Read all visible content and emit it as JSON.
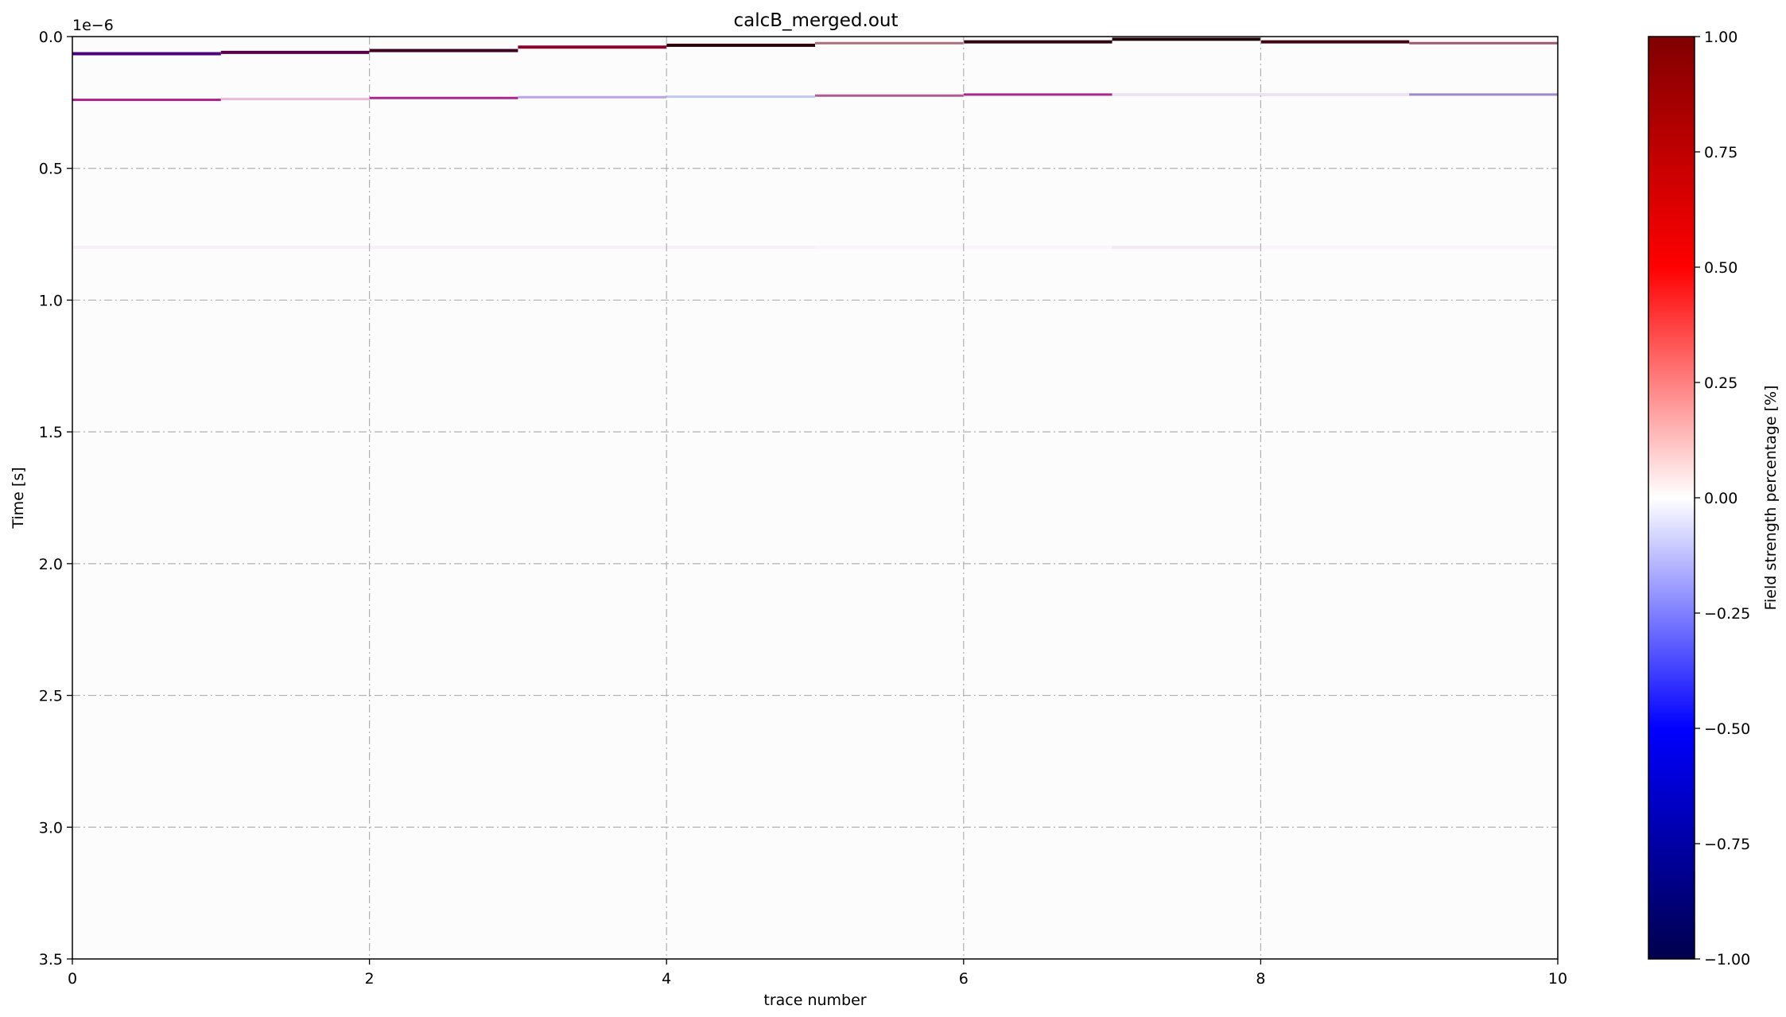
{
  "chart_data": {
    "type": "heatmap",
    "title": "calcB_merged.out",
    "xlabel": "trace number",
    "ylabel": "Time [s]",
    "y_offset_label": "1e−6",
    "y_scale_factor": 1e-06,
    "xlim": [
      0,
      10
    ],
    "ylim": [
      3.5,
      0.0
    ],
    "y_inverted": true,
    "x_ticks": [
      0,
      2,
      4,
      6,
      8,
      10
    ],
    "x_tick_labels": [
      "0",
      "2",
      "4",
      "6",
      "8",
      "10"
    ],
    "y_ticks": [
      0.0,
      0.5,
      1.0,
      1.5,
      2.0,
      2.5,
      3.0,
      3.5
    ],
    "y_tick_labels": [
      "0.0",
      "0.5",
      "1.0",
      "1.5",
      "2.0",
      "2.5",
      "3.0",
      "3.5"
    ],
    "grid": true,
    "colormap": "seismic",
    "colorbar": {
      "label": "Field strength percentage [%]",
      "range": [
        -1.0,
        1.0
      ],
      "ticks": [
        1.0,
        0.75,
        0.5,
        0.25,
        0.0,
        -0.25,
        -0.5,
        -0.75,
        -1.0
      ],
      "tick_labels": [
        "1.00",
        "0.75",
        "0.50",
        "0.25",
        "0.00",
        "−0.25",
        "−0.50",
        "−0.75",
        "−1.00"
      ]
    },
    "background_value": 0.0,
    "traces": [
      {
        "x": [
          0,
          1
        ],
        "reflections": [
          {
            "t": 0.065,
            "value": 0.98,
            "hue": "#4b0080"
          },
          {
            "t": 0.24,
            "value": 0.55,
            "hue": "#a0107e"
          },
          {
            "t": 0.8,
            "value": 0.06,
            "hue": "#f0d8f0"
          }
        ]
      },
      {
        "x": [
          1,
          2
        ],
        "reflections": [
          {
            "t": 0.06,
            "value": 0.96,
            "hue": "#5a0048"
          },
          {
            "t": 0.237,
            "value": 0.35,
            "hue": "#e4a0cc"
          },
          {
            "t": 0.8,
            "value": 0.06,
            "hue": "#f0d8f0"
          }
        ]
      },
      {
        "x": [
          2,
          3
        ],
        "reflections": [
          {
            "t": 0.053,
            "value": 0.97,
            "hue": "#3c0022"
          },
          {
            "t": 0.233,
            "value": 0.55,
            "hue": "#a0107e"
          },
          {
            "t": 0.8,
            "value": 0.06,
            "hue": "#f0d8f0"
          }
        ]
      },
      {
        "x": [
          3,
          4
        ],
        "reflections": [
          {
            "t": 0.04,
            "value": 0.95,
            "hue": "#8c0028"
          },
          {
            "t": 0.23,
            "value": 0.45,
            "hue": "#a890d8"
          },
          {
            "t": 0.8,
            "value": 0.06,
            "hue": "#f0d8f0"
          }
        ]
      },
      {
        "x": [
          4,
          5
        ],
        "reflections": [
          {
            "t": 0.033,
            "value": 1.0,
            "hue": "#300008"
          },
          {
            "t": 0.228,
            "value": 0.35,
            "hue": "#a8b4e8"
          },
          {
            "t": 0.8,
            "value": 0.06,
            "hue": "#f0d8f0"
          }
        ]
      },
      {
        "x": [
          5,
          6
        ],
        "reflections": [
          {
            "t": 0.025,
            "value": 0.55,
            "hue": "#a06070"
          },
          {
            "t": 0.224,
            "value": 0.5,
            "hue": "#a0407e"
          },
          {
            "t": 0.8,
            "value": 0.04,
            "hue": "#f4e4f4"
          }
        ]
      },
      {
        "x": [
          6,
          7
        ],
        "reflections": [
          {
            "t": 0.02,
            "value": 0.99,
            "hue": "#300010"
          },
          {
            "t": 0.22,
            "value": 0.55,
            "hue": "#a0107e"
          },
          {
            "t": 0.8,
            "value": 0.04,
            "hue": "#f4e4f4"
          }
        ]
      },
      {
        "x": [
          7,
          8
        ],
        "reflections": [
          {
            "t": 0.01,
            "value": 1.0,
            "hue": "#200006"
          },
          {
            "t": 0.22,
            "value": 0.25,
            "hue": "#e0d4ec"
          },
          {
            "t": 0.8,
            "value": 0.08,
            "hue": "#eccce8"
          }
        ]
      },
      {
        "x": [
          8,
          9
        ],
        "reflections": [
          {
            "t": 0.02,
            "value": 0.99,
            "hue": "#400010"
          },
          {
            "t": 0.22,
            "value": 0.25,
            "hue": "#e0d4ec"
          },
          {
            "t": 0.8,
            "value": 0.04,
            "hue": "#f4e4f4"
          }
        ]
      },
      {
        "x": [
          9,
          10
        ],
        "reflections": [
          {
            "t": 0.025,
            "value": 0.6,
            "hue": "#985068"
          },
          {
            "t": 0.22,
            "value": 0.5,
            "hue": "#8c72c8"
          },
          {
            "t": 0.8,
            "value": 0.04,
            "hue": "#f4e4f4"
          }
        ]
      }
    ]
  }
}
